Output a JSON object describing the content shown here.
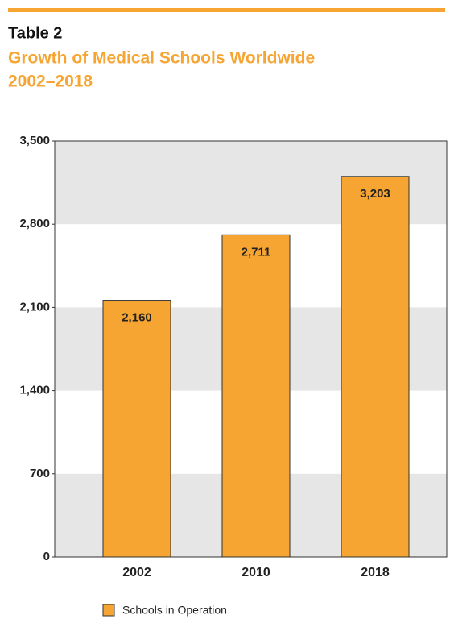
{
  "chart_data": {
    "type": "bar",
    "title": "Table 2",
    "subtitle": [
      "Growth of Medical Schools Worldwide",
      "2002–2018"
    ],
    "categories": [
      "2002",
      "2010",
      "2018"
    ],
    "series": [
      {
        "name": "Schools in Operation",
        "color": "#f7a532",
        "values": [
          2160,
          2711,
          3203
        ],
        "value_labels": [
          "2,160",
          "2,711",
          "3,203"
        ]
      }
    ],
    "ylim": [
      0,
      3500
    ],
    "yticks": [
      0,
      700,
      {
        "value": 1400,
        "label": "1,400"
      },
      {
        "value": 2100,
        "label": "2,100"
      },
      {
        "value": 2800,
        "label": "2,800"
      },
      {
        "value": 3500,
        "label": "3,500"
      }
    ],
    "grid": "bands",
    "band_color": "#e6e6e6"
  }
}
